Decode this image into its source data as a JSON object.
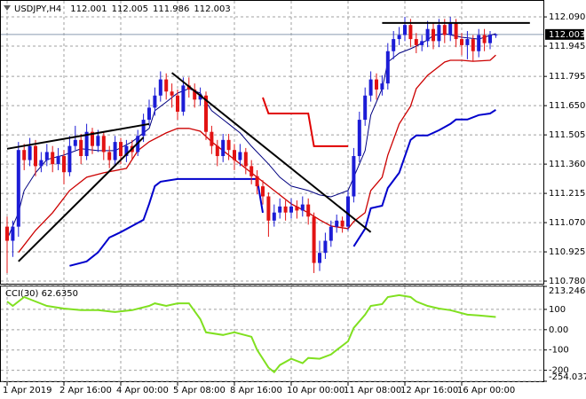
{
  "chart_data": {
    "type": "candlestick",
    "symbol": "USDJPY,H4",
    "open": [
      111.05,
      110.98,
      111.05,
      111.43,
      111.38,
      111.45,
      111.35,
      111.38,
      111.42,
      111.36,
      111.4,
      111.32,
      111.45,
      111.48,
      111.4,
      111.52,
      111.45,
      111.5,
      111.42,
      111.38,
      111.47,
      111.4,
      111.45,
      111.42,
      111.5,
      111.58,
      111.64,
      111.7,
      111.78,
      111.72,
      111.7,
      111.62,
      111.75,
      111.73,
      111.68,
      111.7,
      111.52,
      111.45,
      111.4,
      111.48,
      111.43,
      111.38,
      111.42,
      111.35,
      111.3,
      111.25,
      111.2,
      111.08,
      111.12,
      111.15,
      111.12,
      111.15,
      111.13,
      111.16,
      111.1,
      110.87,
      110.92,
      110.98,
      111.05,
      111.08,
      111.05,
      111.2,
      111.4,
      111.58,
      111.7,
      111.78,
      111.73,
      111.76,
      111.92,
      111.98,
      112.0,
      112.05,
      111.98,
      111.95,
      111.97,
      112.03,
      111.97,
      112.05,
      112.0,
      112.06,
      111.98,
      111.95,
      111.98,
      111.92,
      112.0,
      111.96,
      112.001
    ],
    "high": [
      111.1,
      111.08,
      111.47,
      111.46,
      111.49,
      111.48,
      111.42,
      111.46,
      111.45,
      111.44,
      111.43,
      111.5,
      111.55,
      111.51,
      111.56,
      111.54,
      111.53,
      111.52,
      111.45,
      111.5,
      111.49,
      111.48,
      111.48,
      111.53,
      111.61,
      111.68,
      111.74,
      111.82,
      111.81,
      111.76,
      111.73,
      111.79,
      111.79,
      111.76,
      111.74,
      111.72,
      111.55,
      111.48,
      111.51,
      111.51,
      111.46,
      111.46,
      111.44,
      111.38,
      111.33,
      111.28,
      111.22,
      111.16,
      111.19,
      111.18,
      111.19,
      111.18,
      111.2,
      111.19,
      111.12,
      110.98,
      111.02,
      111.08,
      111.11,
      111.1,
      111.23,
      111.44,
      111.62,
      111.74,
      111.82,
      111.81,
      111.8,
      111.96,
      112.02,
      112.04,
      112.09,
      112.08,
      112.01,
      112.0,
      112.07,
      112.06,
      112.08,
      112.08,
      112.09,
      112.08,
      112.01,
      112.02,
      112.0,
      112.03,
      112.03,
      112.02,
      112.005
    ],
    "low": [
      110.82,
      110.9,
      111.0,
      111.33,
      111.35,
      111.3,
      111.32,
      111.35,
      111.32,
      111.33,
      111.26,
      111.3,
      111.43,
      111.36,
      111.38,
      111.41,
      111.42,
      111.38,
      111.34,
      111.35,
      111.36,
      111.37,
      111.38,
      111.4,
      111.47,
      111.55,
      111.6,
      111.67,
      111.68,
      111.64,
      111.58,
      111.6,
      111.69,
      111.64,
      111.65,
      111.48,
      111.41,
      111.35,
      111.37,
      111.38,
      111.33,
      111.35,
      111.31,
      111.26,
      111.21,
      111.16,
      111.0,
      111.05,
      111.09,
      111.08,
      111.09,
      111.09,
      111.1,
      111.06,
      110.82,
      110.83,
      110.89,
      110.95,
      111.02,
      111.02,
      111.03,
      111.17,
      111.37,
      111.55,
      111.67,
      111.68,
      111.7,
      111.73,
      111.88,
      111.95,
      111.97,
      111.94,
      111.91,
      111.92,
      111.94,
      111.93,
      111.94,
      111.96,
      111.97,
      111.94,
      111.9,
      111.88,
      111.87,
      111.89,
      111.92,
      111.93,
      111.986
    ],
    "close": [
      110.98,
      111.05,
      111.43,
      111.38,
      111.45,
      111.35,
      111.38,
      111.42,
      111.36,
      111.4,
      111.32,
      111.45,
      111.48,
      111.4,
      111.52,
      111.45,
      111.5,
      111.42,
      111.38,
      111.47,
      111.4,
      111.45,
      111.42,
      111.5,
      111.58,
      111.64,
      111.7,
      111.78,
      111.72,
      111.7,
      111.62,
      111.75,
      111.73,
      111.68,
      111.7,
      111.52,
      111.45,
      111.4,
      111.48,
      111.43,
      111.38,
      111.42,
      111.35,
      111.3,
      111.25,
      111.2,
      111.08,
      111.12,
      111.15,
      111.12,
      111.15,
      111.13,
      111.16,
      111.1,
      110.87,
      110.92,
      110.98,
      111.05,
      111.08,
      111.05,
      111.2,
      111.4,
      111.58,
      111.7,
      111.78,
      111.73,
      111.76,
      111.92,
      111.98,
      112.0,
      112.05,
      111.98,
      111.95,
      111.97,
      112.03,
      111.97,
      112.05,
      112.0,
      112.06,
      111.98,
      111.95,
      111.98,
      111.92,
      112.0,
      111.96,
      112.001,
      112.003
    ],
    "up_color": "#1c1cd6",
    "down_color": "#e21313",
    "ylim": [
      110.767,
      112.165
    ],
    "yticks": [
      {
        "value": 112.09,
        "label": "112.090"
      },
      111.945,
      111.795,
      {
        "value": 111.65,
        "label": "111.650"
      },
      111.505,
      {
        "value": 111.36,
        "label": "111.360"
      },
      111.215,
      {
        "value": 111.07,
        "label": "111.070"
      },
      110.925,
      {
        "value": 110.78,
        "label": "110.780"
      }
    ],
    "xticks": [
      {
        "value": 0,
        "label": "1 Apr 2019"
      },
      {
        "value": 10,
        "label": "2 Apr 16:00"
      },
      {
        "value": 20,
        "label": "4 Apr 00:00"
      },
      {
        "value": 30,
        "label": "5 Apr 08:00"
      },
      {
        "value": 40,
        "label": "8 Apr 16:00"
      },
      {
        "value": 50,
        "label": "10 Apr 00:00"
      },
      {
        "value": 60,
        "label": "11 Apr 08:00"
      },
      {
        "value": 70,
        "label": "12 Apr 16:00"
      },
      {
        "value": 80,
        "label": "16 Apr 00:00"
      }
    ],
    "grid": true,
    "overlays": [
      {
        "color": "#cc0000",
        "width": 1.3,
        "x": [
          2,
          5,
          8,
          11,
          14,
          17,
          21,
          23,
          25,
          28,
          30,
          32,
          34,
          36,
          39,
          41,
          43,
          46,
          48,
          50,
          53,
          55,
          57,
          60,
          61,
          63,
          64,
          66,
          67,
          69,
          71,
          72,
          74,
          75,
          77,
          78,
          80,
          82,
          85,
          86
        ],
        "values": [
          110.922,
          111.031,
          111.119,
          111.229,
          111.295,
          111.317,
          111.339,
          111.427,
          111.471,
          111.515,
          111.537,
          111.537,
          111.523,
          111.471,
          111.405,
          111.361,
          111.317,
          111.251,
          111.207,
          111.163,
          111.119,
          111.084,
          111.053,
          111.04,
          111.075,
          111.119,
          111.229,
          111.295,
          111.405,
          111.559,
          111.647,
          111.734,
          111.8,
          111.822,
          111.866,
          111.875,
          111.875,
          111.87,
          111.875,
          111.901
        ]
      },
      {
        "color": "#000080",
        "width": 1,
        "x": [
          0,
          2,
          3,
          5,
          7,
          10,
          13,
          16,
          19,
          22,
          25,
          26,
          28,
          30,
          32,
          34,
          36,
          39,
          41,
          43,
          46,
          48,
          50,
          53,
          55,
          57,
          60,
          61,
          63,
          64,
          66,
          67,
          69,
          71,
          72,
          74,
          75,
          77,
          80,
          83,
          86
        ],
        "values": [
          110.987,
          111.119,
          111.229,
          111.317,
          111.383,
          111.405,
          111.436,
          111.427,
          111.427,
          111.471,
          111.537,
          111.625,
          111.668,
          111.712,
          111.734,
          111.712,
          111.625,
          111.559,
          111.515,
          111.449,
          111.361,
          111.295,
          111.251,
          111.229,
          111.207,
          111.198,
          111.229,
          111.295,
          111.427,
          111.603,
          111.734,
          111.866,
          111.91,
          111.932,
          111.945,
          111.976,
          111.998,
          112.007,
          111.989,
          111.98,
          112.007
        ]
      },
      {
        "color": "#0000cc",
        "width": 2,
        "x": [
          11,
          14,
          16,
          18,
          20,
          22,
          24,
          25,
          26,
          27,
          30,
          44,
          45,
          46,
          61,
          63,
          64,
          66,
          67,
          69,
          71,
          72,
          74,
          76,
          78,
          79,
          81,
          83,
          85,
          86
        ],
        "values": [
          110.856,
          110.878,
          110.922,
          110.996,
          111.023,
          111.053,
          111.084,
          111.163,
          111.251,
          111.273,
          111.286,
          111.286,
          111.119,
          null,
          110.952,
          111.04,
          111.141,
          111.154,
          111.242,
          111.317,
          111.48,
          111.502,
          111.502,
          111.528,
          111.559,
          111.581,
          111.581,
          111.603,
          111.611,
          111.629
        ]
      },
      {
        "color": "#e00000",
        "width": 2,
        "x": [
          45,
          46,
          53,
          54,
          60
        ],
        "values": [
          111.69,
          111.611,
          111.611,
          111.449,
          111.449
        ]
      }
    ],
    "trendlines": [
      {
        "x": [
          0,
          25
        ],
        "y": [
          111.436,
          111.559
        ]
      },
      {
        "x": [
          2,
          24
        ],
        "y": [
          110.878,
          111.493
        ]
      },
      {
        "x": [
          29,
          64
        ],
        "y": [
          111.813,
          111.023
        ]
      },
      {
        "x": [
          66,
          92
        ],
        "y": [
          112.06,
          112.06
        ]
      }
    ],
    "indicator": {
      "type": "line",
      "title": "CCI(30) 62.6350",
      "color": "#80e020",
      "ylim": [
        -254.0373,
        213.2462
      ],
      "yticks": [
        213.2462,
        100,
        {
          "value": 0,
          "label": "0.00"
        },
        -100,
        -200,
        -254.0373
      ],
      "x": [
        0,
        1,
        3,
        5,
        7,
        10,
        13,
        16,
        19,
        22,
        25,
        26,
        28,
        30,
        32,
        34,
        35,
        38,
        40,
        43,
        44,
        46,
        47,
        48,
        50,
        52,
        53,
        55,
        57,
        58,
        60,
        61,
        63,
        64,
        66,
        67,
        69,
        71,
        72,
        74,
        76,
        78,
        81,
        83,
        86
      ],
      "values": [
        139,
        117,
        161,
        139,
        117,
        104,
        96,
        96,
        87,
        96,
        117,
        130,
        117,
        130,
        130,
        52,
        -13,
        -26,
        -13,
        -35,
        -100,
        -187,
        -209,
        -174,
        -143,
        -165,
        -139,
        -143,
        -122,
        -100,
        -57,
        9,
        74,
        117,
        126,
        161,
        170,
        161,
        139,
        117,
        104,
        96,
        74,
        70,
        62.635
      ]
    }
  }
}
